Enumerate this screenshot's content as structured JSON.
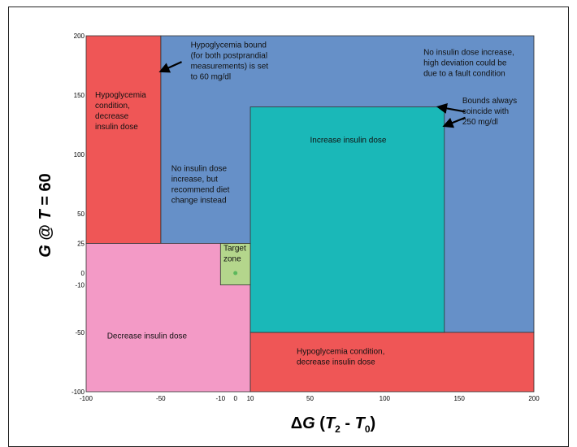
{
  "chart_data": {
    "type": "area",
    "xlim": [
      -100,
      200
    ],
    "ylim": [
      -100,
      200
    ],
    "x_ticks": [
      -100,
      -50,
      -10,
      0,
      10,
      50,
      100,
      150,
      200
    ],
    "y_ticks": [
      200,
      150,
      100,
      50,
      25,
      0,
      -10,
      -50,
      -100
    ],
    "xlabel": {
      "prefix": "Δ",
      "var": "G",
      "open": " (",
      "t1": "T",
      "s1": "2",
      "dash": " - ",
      "t2": "T",
      "s2": "0",
      "close": ")"
    },
    "ylabel": {
      "var1": "G",
      "at": " @ ",
      "var2": "T",
      "rest": " = 60"
    },
    "regions": [
      {
        "name": "no-increase-fault",
        "x": [
          -50,
          200
        ],
        "y": [
          -50,
          200
        ],
        "color": "#6690c8"
      },
      {
        "name": "hypo-left",
        "x": [
          -100,
          -50
        ],
        "y": [
          25,
          200
        ],
        "color": "#ef5656"
      },
      {
        "name": "decrease",
        "x": [
          -100,
          10
        ],
        "y": [
          -100,
          25
        ],
        "color": "#f39ac6"
      },
      {
        "name": "hypo-bottom",
        "x": [
          10,
          200
        ],
        "y": [
          -100,
          -50
        ],
        "color": "#ef5656"
      },
      {
        "name": "increase",
        "x": [
          10,
          140
        ],
        "y": [
          -50,
          140
        ],
        "color": "#1ab8b8"
      },
      {
        "name": "target",
        "x": [
          -10,
          10
        ],
        "y": [
          -10,
          25
        ],
        "color": "#b4d68c"
      }
    ],
    "target_point": {
      "x": 0,
      "y": 0,
      "color": "#5cb85c"
    },
    "annotations": [
      {
        "name": "hypo-left-label",
        "x": -94,
        "y": 148,
        "lines": [
          "Hypoglycemia",
          "condition,",
          "decrease",
          "insulin dose"
        ]
      },
      {
        "name": "hypo-bound-note",
        "x": -30,
        "y": 190,
        "lines": [
          "Hypoglycemia bound",
          "(for both postprandial",
          "measurements) is set",
          "to 60 mg/dl"
        ]
      },
      {
        "name": "no-increase-fault-label",
        "x": 126,
        "y": 184,
        "lines": [
          "No insulin dose increase,",
          "high deviation could be",
          "due to a fault condition"
        ]
      },
      {
        "name": "bounds-note",
        "x": 152,
        "y": 143,
        "lines": [
          "Bounds always",
          "coincide with",
          "250 mg/dl"
        ]
      },
      {
        "name": "increase-label",
        "x": 50,
        "y": 110,
        "lines": [
          "Increase insulin dose"
        ]
      },
      {
        "name": "diet-label",
        "x": -43,
        "y": 86,
        "lines": [
          "No insulin dose",
          "increase, but",
          "recommend diet",
          "change instead"
        ]
      },
      {
        "name": "target-label",
        "x": -8,
        "y": 19,
        "lines": [
          "Target",
          "zone"
        ]
      },
      {
        "name": "decrease-label",
        "x": -86,
        "y": -55,
        "lines": [
          "Decrease insulin dose"
        ]
      },
      {
        "name": "hypo-bottom-label",
        "x": 41,
        "y": -68,
        "lines": [
          "Hypoglycemia condition,",
          "decrease insulin dose"
        ]
      }
    ],
    "arrows": [
      {
        "name": "arrow-hypo-bound",
        "from": [
          -36,
          178
        ],
        "to": [
          -50,
          170
        ]
      },
      {
        "name": "arrow-bounds-top",
        "from": [
          154,
          136
        ],
        "to": [
          136,
          140
        ]
      },
      {
        "name": "arrow-bounds-right",
        "from": [
          154,
          131
        ],
        "to": [
          140,
          124
        ]
      }
    ]
  }
}
